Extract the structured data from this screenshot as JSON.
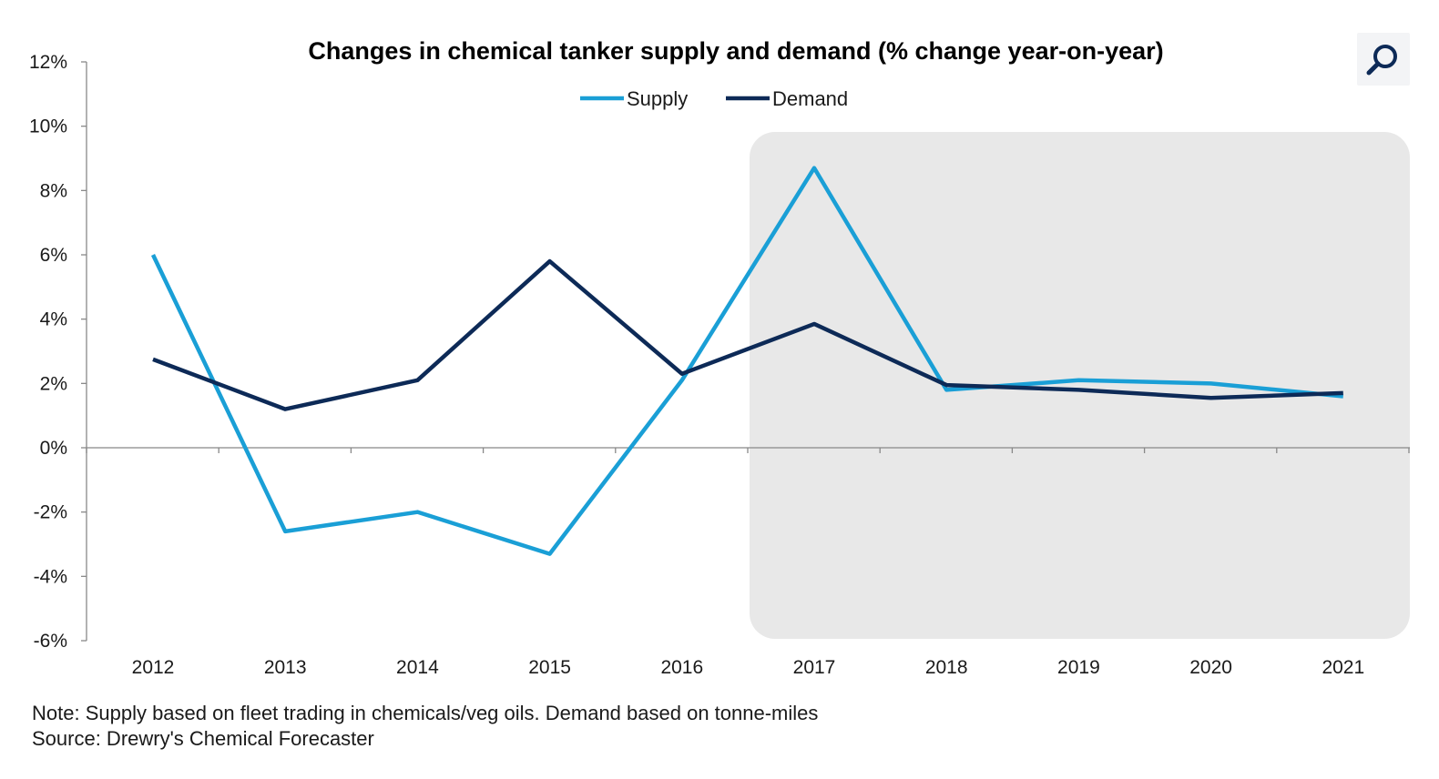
{
  "chart_data": {
    "type": "line",
    "title": "Changes in chemical tanker supply and demand (% change year-on-year)",
    "x": [
      "2012",
      "2013",
      "2014",
      "2015",
      "2016",
      "2017",
      "2018",
      "2019",
      "2020",
      "2021"
    ],
    "series": [
      {
        "name": "Supply",
        "color": "#1a9fd6",
        "values": [
          6.0,
          -2.6,
          -2.0,
          -3.3,
          2.1,
          8.7,
          1.8,
          2.1,
          2.0,
          1.6
        ]
      },
      {
        "name": "Demand",
        "color": "#0d2a57",
        "values": [
          2.75,
          1.2,
          2.1,
          5.8,
          2.3,
          3.85,
          1.95,
          1.8,
          1.55,
          1.7
        ]
      }
    ],
    "yticks": [
      "12%",
      "10%",
      "8%",
      "6%",
      "4%",
      "2%",
      "0%",
      "-2%",
      "-4%",
      "-6%"
    ],
    "ylim": [
      -6,
      12
    ],
    "ylabel": "",
    "xlabel": "",
    "legend_position": "top-center",
    "forecast_shading_from": "2016",
    "forecast_shading_color": "#e8e8e8",
    "grid": false
  },
  "notes": {
    "note": "Note: Supply based on fleet trading in chemicals/veg oils. Demand based on tonne-miles",
    "source": "Source: Drewry's Chemical Forecaster"
  },
  "search_icon": "magnifier-icon"
}
